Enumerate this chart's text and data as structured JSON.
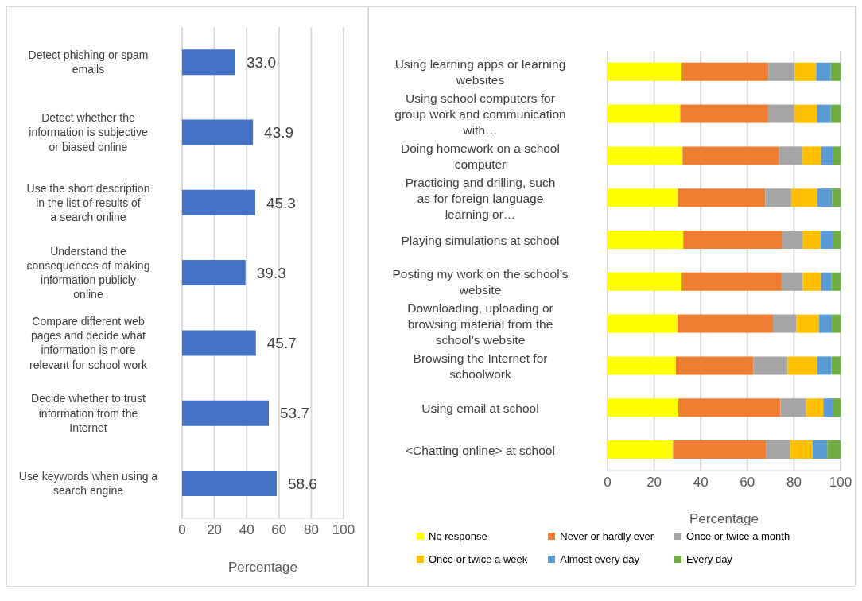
{
  "chart_data": [
    {
      "type": "bar",
      "orientation": "horizontal",
      "categories": [
        "Detect phishing or spam emails",
        "Detect whether the information is subjective or biased online",
        "Use the short description in the list of results of a search online",
        "Understand the consequences of making information publicly online",
        "Compare different web pages and decide what information is more relevant for school work",
        "Decide whether to trust information from the Internet",
        "Use keywords when using a search engine"
      ],
      "values": [
        33.0,
        43.9,
        45.3,
        39.3,
        45.7,
        53.7,
        58.6
      ],
      "value_labels": [
        "33.0",
        "43.9",
        "45.3",
        "39.3",
        "45.7",
        "53.7",
        "58.6"
      ],
      "color": "#4472c4",
      "xlim": [
        0,
        100
      ],
      "xticks": [
        0,
        20,
        40,
        60,
        80,
        100
      ],
      "xlabel": "Percentage",
      "grid": "x"
    },
    {
      "type": "bar",
      "orientation": "horizontal",
      "stacked": true,
      "categories": [
        "Using learning apps or learning websites",
        "Using school computers for group work and communication with…",
        "Doing homework on a school computer",
        "Practicing and drilling, such as for foreign language learning or…",
        "Playing simulations at school",
        "Posting my work on the school’s website",
        "Downloading, uploading or browsing material from the school’s website",
        "Browsing the Internet for schoolwork",
        "Using email at school",
        "<Chatting online> at school"
      ],
      "series": [
        {
          "name": "No response",
          "color": "#ffff00",
          "values": [
            31.8,
            31.2,
            32.2,
            30.2,
            32.5,
            31.8,
            30.0,
            29.3,
            30.4,
            28.1
          ]
        },
        {
          "name": "Never or hardly ever",
          "color": "#ed7d31",
          "values": [
            37.2,
            37.7,
            41.4,
            37.5,
            42.6,
            42.9,
            41.0,
            33.3,
            43.8,
            39.9
          ]
        },
        {
          "name": "Once or twice a month",
          "color": "#a5a5a5",
          "values": [
            11.3,
            11.2,
            9.9,
            11.1,
            8.5,
            9.0,
            10.0,
            14.7,
            11.0,
            10.3
          ]
        },
        {
          "name": "Once or twice a week",
          "color": "#ffc000",
          "values": [
            9.3,
            9.7,
            8.2,
            11.2,
            7.9,
            8.0,
            9.8,
            12.8,
            7.4,
            9.7
          ]
        },
        {
          "name": "Almost every day",
          "color": "#5b9bd5",
          "values": [
            6.2,
            6.0,
            5.0,
            6.4,
            5.1,
            4.3,
            5.5,
            6.0,
            4.0,
            6.3
          ]
        },
        {
          "name": "Every day",
          "color": "#70ad47",
          "values": [
            4.2,
            4.2,
            3.3,
            3.6,
            3.4,
            4.0,
            3.7,
            3.9,
            3.4,
            5.7
          ]
        }
      ],
      "xlim": [
        0,
        100
      ],
      "xticks": [
        0,
        20,
        40,
        60,
        80,
        100
      ],
      "xlabel": "Percentage",
      "grid": "x",
      "legend": "bottom"
    }
  ]
}
